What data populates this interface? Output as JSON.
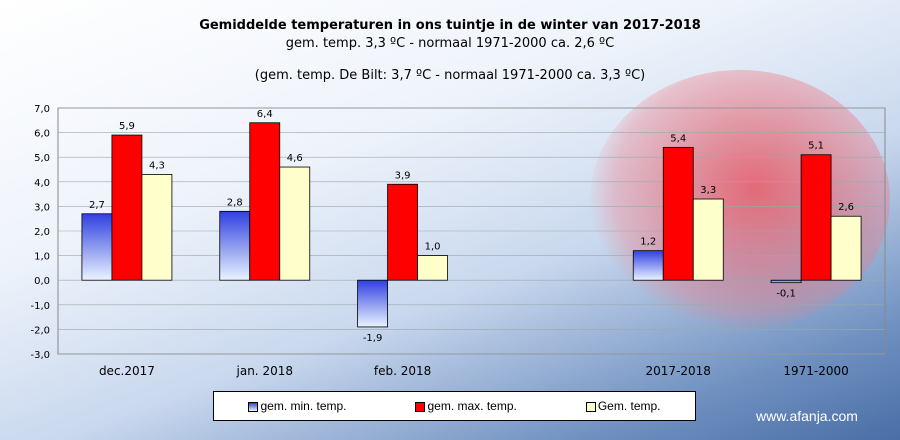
{
  "chart_data": {
    "type": "bar",
    "title": "Gemiddelde temperaturen in ons tuintje in de winter van 2017-2018",
    "subtitle": "gem.  temp. 3,3 ºC - normaal  1971-2000  ca. 2,6 ºC",
    "subtitle2": "(gem.  temp. De Bilt: 3,7 ºC - normaal  1971-2000  ca. 3,3 ºC)",
    "categories": [
      "dec.2017",
      "jan. 2018",
      "feb. 2018",
      "",
      "2017-2018",
      "1971-2000"
    ],
    "ylim": [
      -3,
      7
    ],
    "yticks": [
      "-3,0",
      "-2,0",
      "-1,0",
      "0,0",
      "1,0",
      "2,0",
      "3,0",
      "4,0",
      "5,0",
      "6,0",
      "7,0"
    ],
    "grid": true,
    "legend_position": "bottom",
    "series": [
      {
        "name": "gem. min. temp.",
        "color": "#3f4fe0",
        "values": [
          2.7,
          2.8,
          -1.9,
          null,
          1.2,
          -0.1
        ],
        "labels": [
          "2,7",
          "2,8",
          "-1,9",
          "",
          "1,2",
          "-0,1"
        ]
      },
      {
        "name": "gem. max. temp.",
        "color": "#ff0000",
        "values": [
          5.9,
          6.4,
          3.9,
          null,
          5.4,
          5.1
        ],
        "labels": [
          "5,9",
          "6,4",
          "3,9",
          "",
          "5,4",
          "5,1"
        ]
      },
      {
        "name": "Gem. temp.",
        "color": "#ffffcc",
        "values": [
          4.3,
          4.6,
          1.0,
          null,
          3.3,
          2.6
        ],
        "labels": [
          "4,3",
          "4,6",
          "1,0",
          "",
          "3,3",
          "2,6"
        ]
      }
    ]
  },
  "watermark": "www.afanja.com"
}
